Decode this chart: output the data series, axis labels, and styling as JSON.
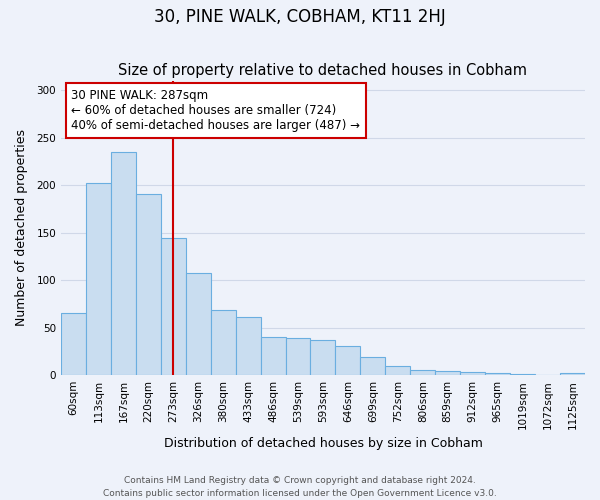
{
  "title": "30, PINE WALK, COBHAM, KT11 2HJ",
  "subtitle": "Size of property relative to detached houses in Cobham",
  "xlabel": "Distribution of detached houses by size in Cobham",
  "ylabel": "Number of detached properties",
  "categories": [
    "60sqm",
    "113sqm",
    "167sqm",
    "220sqm",
    "273sqm",
    "326sqm",
    "380sqm",
    "433sqm",
    "486sqm",
    "539sqm",
    "593sqm",
    "646sqm",
    "699sqm",
    "752sqm",
    "806sqm",
    "859sqm",
    "912sqm",
    "965sqm",
    "1019sqm",
    "1072sqm",
    "1125sqm"
  ],
  "values": [
    65,
    202,
    235,
    191,
    144,
    107,
    68,
    61,
    40,
    39,
    37,
    31,
    19,
    10,
    5,
    4,
    3,
    2,
    1,
    0,
    2
  ],
  "bar_color": "#c9ddf0",
  "bar_edge_color": "#6aaee0",
  "vline_x": 4.5,
  "vline_color": "#cc0000",
  "annotation_text": "30 PINE WALK: 287sqm\n← 60% of detached houses are smaller (724)\n40% of semi-detached houses are larger (487) →",
  "annotation_box_color": "white",
  "annotation_box_edge_color": "#cc0000",
  "ylim": [
    0,
    310
  ],
  "yticks": [
    0,
    50,
    100,
    150,
    200,
    250,
    300
  ],
  "footer1": "Contains HM Land Registry data © Crown copyright and database right 2024.",
  "footer2": "Contains public sector information licensed under the Open Government Licence v3.0.",
  "background_color": "#eef2fa",
  "grid_color": "#d0d8e8",
  "title_fontsize": 12,
  "axis_label_fontsize": 9,
  "tick_fontsize": 7.5,
  "annotation_fontsize": 8.5,
  "footer_fontsize": 6.5
}
